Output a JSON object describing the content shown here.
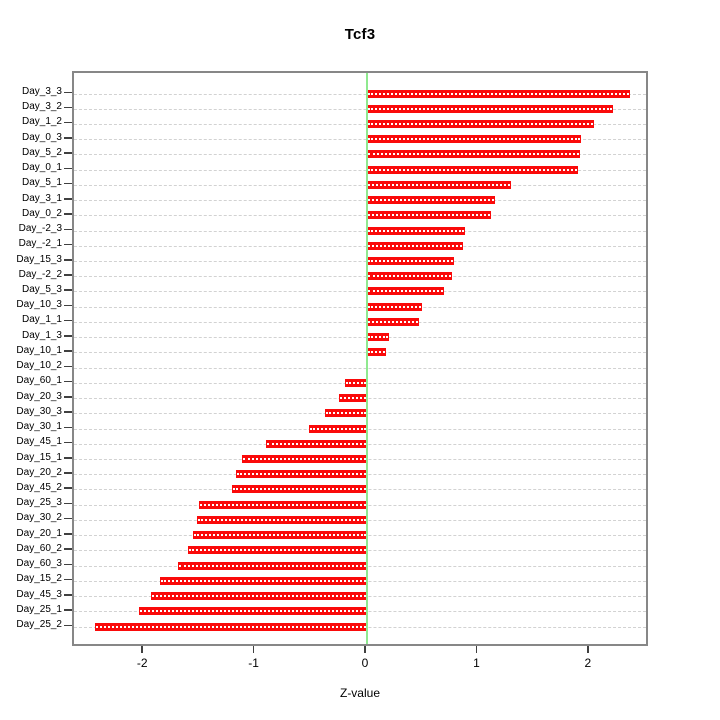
{
  "chart_data": {
    "type": "bar",
    "orientation": "horizontal",
    "title": "Tcf3",
    "xlabel": "Z-value",
    "ylabel": "",
    "grid": true,
    "xticks": [
      -2,
      -1,
      0,
      1,
      2
    ],
    "xlim": [
      -2.63,
      2.54
    ],
    "bar_color": "#fa0a0a",
    "bar_inner_dash_color": "#ffffff",
    "zero_line_color": "#8fe98f",
    "gridline_color": "#d2d2d2",
    "box_color": "#878787",
    "categories": [
      "Day_3_3",
      "Day_3_2",
      "Day_1_2",
      "Day_0_3",
      "Day_5_2",
      "Day_0_1",
      "Day_5_1",
      "Day_3_1",
      "Day_0_2",
      "Day_-2_3",
      "Day_-2_1",
      "Day_15_3",
      "Day_-2_2",
      "Day_5_3",
      "Day_10_3",
      "Day_1_1",
      "Day_1_3",
      "Day_10_1",
      "Day_10_2",
      "Day_60_1",
      "Day_20_3",
      "Day_30_3",
      "Day_30_1",
      "Day_45_1",
      "Day_15_1",
      "Day_20_2",
      "Day_45_2",
      "Day_25_3",
      "Day_30_2",
      "Day_20_1",
      "Day_60_2",
      "Day_60_3",
      "Day_15_2",
      "Day_45_3",
      "Day_25_1",
      "Day_25_2"
    ],
    "values": [
      2.36,
      2.21,
      2.04,
      1.92,
      1.91,
      1.89,
      1.29,
      1.15,
      1.11,
      0.88,
      0.86,
      0.78,
      0.76,
      0.69,
      0.49,
      0.47,
      0.2,
      0.17,
      -0.01,
      -0.2,
      -0.25,
      -0.38,
      -0.52,
      -0.91,
      -1.12,
      -1.18,
      -1.21,
      -1.51,
      -1.53,
      -1.56,
      -1.61,
      -1.7,
      -1.86,
      -1.94,
      -2.05,
      -2.44
    ]
  }
}
